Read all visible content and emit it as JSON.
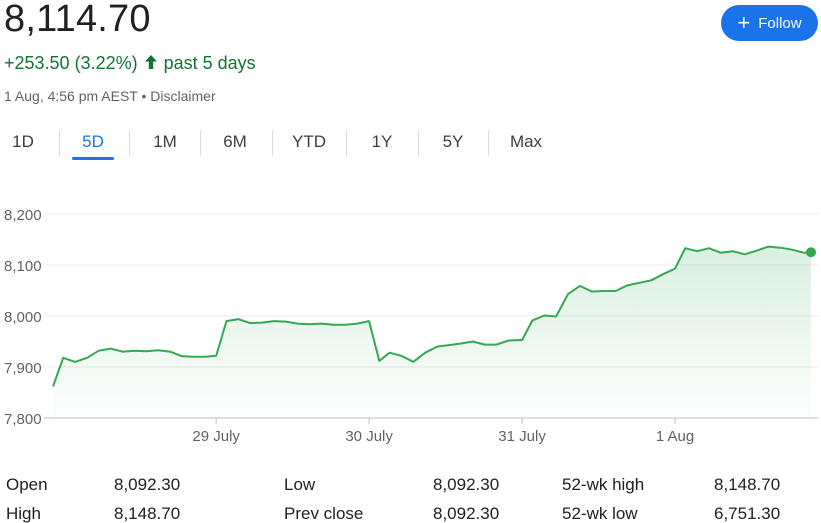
{
  "quote": {
    "price": "8,114.70",
    "change": "+253.50 (3.22%)",
    "period": "past 5 days",
    "meta": "1 Aug, 4:56 pm AEST • Disclaimer"
  },
  "follow_button": {
    "label": "Follow"
  },
  "tabs": [
    {
      "label": "1D",
      "active": false
    },
    {
      "label": "5D",
      "active": true
    },
    {
      "label": "1M",
      "active": false
    },
    {
      "label": "6M",
      "active": false
    },
    {
      "label": "YTD",
      "active": false
    },
    {
      "label": "1Y",
      "active": false
    },
    {
      "label": "5Y",
      "active": false
    },
    {
      "label": "Max",
      "active": false
    }
  ],
  "colors": {
    "line": "#34a853",
    "positive": "#137333",
    "accent": "#1a73e8"
  },
  "chart_data": {
    "type": "line",
    "y_ticks": [
      "8,200",
      "8,100",
      "8,000",
      "7,900",
      "7,800"
    ],
    "ylim": [
      7800,
      8200
    ],
    "x_tick_labels": [
      "29 July",
      "30 July",
      "31 July",
      "1 Aug"
    ],
    "x_tick_positions": [
      9.6,
      18.6,
      27.6,
      36.6
    ],
    "x_range": [
      0,
      44.6
    ],
    "grid": true,
    "series": [
      {
        "x": [
          0,
          0.6,
          1.3,
          2.0,
          2.7,
          3.4,
          4.1,
          4.8,
          5.5,
          6.2,
          6.9,
          7.6,
          8.3,
          9.0,
          9.6,
          10.2,
          10.9,
          11.6,
          12.3,
          13.0,
          13.7,
          14.4,
          15.1,
          15.8,
          16.5,
          17.2,
          17.9,
          18.6,
          19.2,
          19.8,
          20.5,
          21.2,
          21.9,
          22.6,
          23.3,
          24.0,
          24.7,
          25.4,
          26.1,
          26.8,
          27.6,
          28.2,
          28.9,
          29.6,
          30.3,
          31.0,
          31.7,
          32.4,
          33.1,
          33.8,
          34.5,
          35.2,
          35.9,
          36.6,
          37.2,
          37.9,
          38.6,
          39.3,
          40.0,
          40.7,
          41.4,
          42.1,
          42.8,
          43.5,
          44.2,
          44.6
        ],
        "y": [
          7862,
          7918,
          7910,
          7918,
          7932,
          7936,
          7930,
          7932,
          7931,
          7933,
          7930,
          7921,
          7920,
          7920,
          7922,
          7990,
          7994,
          7986,
          7987,
          7990,
          7989,
          7985,
          7984,
          7985,
          7983,
          7983,
          7985,
          7990,
          7912,
          7928,
          7922,
          7910,
          7928,
          7940,
          7943,
          7946,
          7950,
          7944,
          7944,
          7952,
          7953,
          7991,
          8001,
          7999,
          8043,
          8059,
          8048,
          8049,
          8049,
          8060,
          8065,
          8070,
          8082,
          8093,
          8133,
          8127,
          8133,
          8124,
          8127,
          8121,
          8128,
          8136,
          8134,
          8130,
          8124,
          8125
        ]
      }
    ]
  },
  "stats": [
    {
      "label": "Open",
      "value": "8,092.30"
    },
    {
      "label": "High",
      "value": "8,148.70"
    },
    {
      "label": "Low",
      "value": "8,092.30"
    },
    {
      "label": "Prev close",
      "value": "8,092.30"
    },
    {
      "label": "52-wk high",
      "value": "8,148.70"
    },
    {
      "label": "52-wk low",
      "value": "6,751.30"
    }
  ]
}
